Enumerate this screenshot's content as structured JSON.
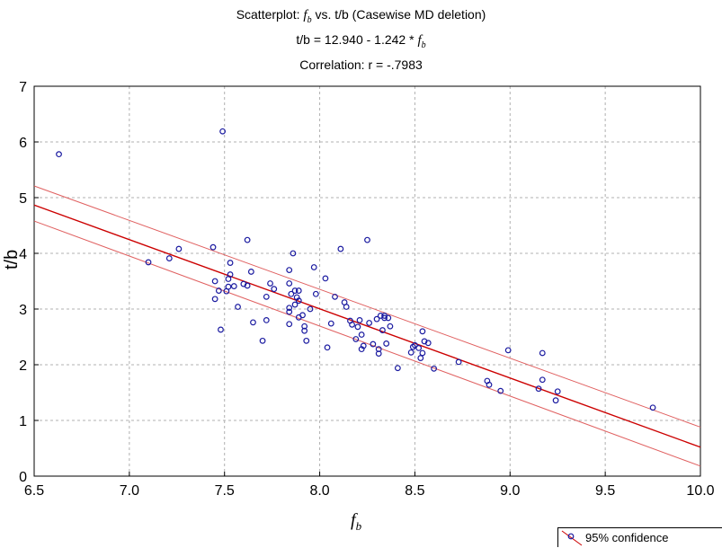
{
  "title": {
    "line1_prefix": "Scatterplot: ",
    "line1_var": "f",
    "line1_sub": "b",
    "line1_suffix": " vs. t/b (Casewise MD deletion)",
    "line2_prefix": "t/b = 12.940 - 1.242  * ",
    "line2_var": "f",
    "line2_sub": "b",
    "line3": "Correlation: r = -.7983"
  },
  "legend": {
    "label": "95% confidence"
  },
  "colors": {
    "points": "#1a1aa0",
    "fit": "#cc0000",
    "ci": "#e06060",
    "grid": "#b0b0b0"
  },
  "chart_data": {
    "type": "scatter",
    "xlabel": "f_b",
    "xlabel_var": "f",
    "xlabel_sub": "b",
    "ylabel": "t/b",
    "xlim": [
      6.5,
      10.0
    ],
    "ylim": [
      0,
      7
    ],
    "xticks": [
      "6.5",
      "7.0",
      "7.5",
      "8.0",
      "8.5",
      "9.0",
      "9.5",
      "10.0"
    ],
    "yticks": [
      "0",
      "1",
      "2",
      "3",
      "4",
      "5",
      "6",
      "7"
    ],
    "grid": true,
    "fit_line": {
      "intercept": 12.94,
      "slope": -1.242
    },
    "confidence_band": {
      "level": "95%",
      "upper": [
        [
          6.5,
          5.21
        ],
        [
          10.0,
          0.88
        ]
      ],
      "lower": [
        [
          6.5,
          4.58
        ],
        [
          10.0,
          0.18
        ]
      ]
    },
    "legend_position": "bottom-right",
    "points": [
      [
        6.63,
        5.78
      ],
      [
        7.49,
        6.19
      ],
      [
        7.1,
        3.84
      ],
      [
        7.21,
        3.91
      ],
      [
        7.26,
        4.08
      ],
      [
        7.44,
        4.11
      ],
      [
        7.45,
        3.5
      ],
      [
        7.45,
        3.18
      ],
      [
        7.47,
        3.33
      ],
      [
        7.48,
        2.63
      ],
      [
        7.51,
        3.32
      ],
      [
        7.52,
        3.4
      ],
      [
        7.52,
        3.54
      ],
      [
        7.53,
        3.83
      ],
      [
        7.53,
        3.62
      ],
      [
        7.55,
        3.41
      ],
      [
        7.57,
        3.04
      ],
      [
        7.6,
        3.45
      ],
      [
        7.62,
        4.24
      ],
      [
        7.62,
        3.42
      ],
      [
        7.64,
        3.67
      ],
      [
        7.65,
        2.76
      ],
      [
        7.7,
        2.43
      ],
      [
        7.72,
        2.8
      ],
      [
        7.72,
        3.22
      ],
      [
        7.74,
        3.46
      ],
      [
        7.76,
        3.36
      ],
      [
        7.84,
        3.46
      ],
      [
        7.84,
        3.7
      ],
      [
        7.84,
        3.02
      ],
      [
        7.84,
        2.95
      ],
      [
        7.84,
        2.73
      ],
      [
        7.85,
        3.27
      ],
      [
        7.86,
        4.0
      ],
      [
        7.87,
        3.33
      ],
      [
        7.87,
        3.08
      ],
      [
        7.88,
        3.21
      ],
      [
        7.89,
        3.33
      ],
      [
        7.89,
        3.15
      ],
      [
        7.89,
        2.85
      ],
      [
        7.91,
        2.89
      ],
      [
        7.92,
        2.69
      ],
      [
        7.92,
        2.61
      ],
      [
        7.93,
        2.43
      ],
      [
        7.95,
        3.0
      ],
      [
        7.97,
        3.75
      ],
      [
        7.98,
        3.27
      ],
      [
        8.03,
        3.55
      ],
      [
        8.04,
        2.31
      ],
      [
        8.06,
        2.74
      ],
      [
        8.08,
        3.22
      ],
      [
        8.11,
        4.08
      ],
      [
        8.13,
        3.12
      ],
      [
        8.14,
        3.04
      ],
      [
        8.16,
        2.79
      ],
      [
        8.17,
        2.72
      ],
      [
        8.19,
        2.46
      ],
      [
        8.2,
        2.68
      ],
      [
        8.21,
        2.8
      ],
      [
        8.22,
        2.54
      ],
      [
        8.22,
        2.28
      ],
      [
        8.23,
        2.34
      ],
      [
        8.25,
        4.24
      ],
      [
        8.26,
        2.75
      ],
      [
        8.28,
        2.37
      ],
      [
        8.3,
        2.82
      ],
      [
        8.31,
        2.2
      ],
      [
        8.31,
        2.28
      ],
      [
        8.32,
        2.88
      ],
      [
        8.33,
        2.62
      ],
      [
        8.34,
        2.88
      ],
      [
        8.34,
        2.84
      ],
      [
        8.35,
        2.38
      ],
      [
        8.36,
        2.84
      ],
      [
        8.37,
        2.69
      ],
      [
        8.41,
        1.94
      ],
      [
        8.48,
        2.22
      ],
      [
        8.49,
        2.32
      ],
      [
        8.5,
        2.35
      ],
      [
        8.52,
        2.3
      ],
      [
        8.53,
        2.12
      ],
      [
        8.54,
        2.21
      ],
      [
        8.54,
        2.6
      ],
      [
        8.55,
        2.42
      ],
      [
        8.57,
        2.39
      ],
      [
        8.6,
        1.93
      ],
      [
        8.73,
        2.05
      ],
      [
        8.88,
        1.71
      ],
      [
        8.89,
        1.64
      ],
      [
        8.95,
        1.53
      ],
      [
        8.99,
        2.26
      ],
      [
        9.15,
        1.57
      ],
      [
        9.17,
        2.21
      ],
      [
        9.17,
        1.73
      ],
      [
        9.24,
        1.36
      ],
      [
        9.25,
        1.52
      ],
      [
        9.75,
        1.23
      ]
    ]
  }
}
